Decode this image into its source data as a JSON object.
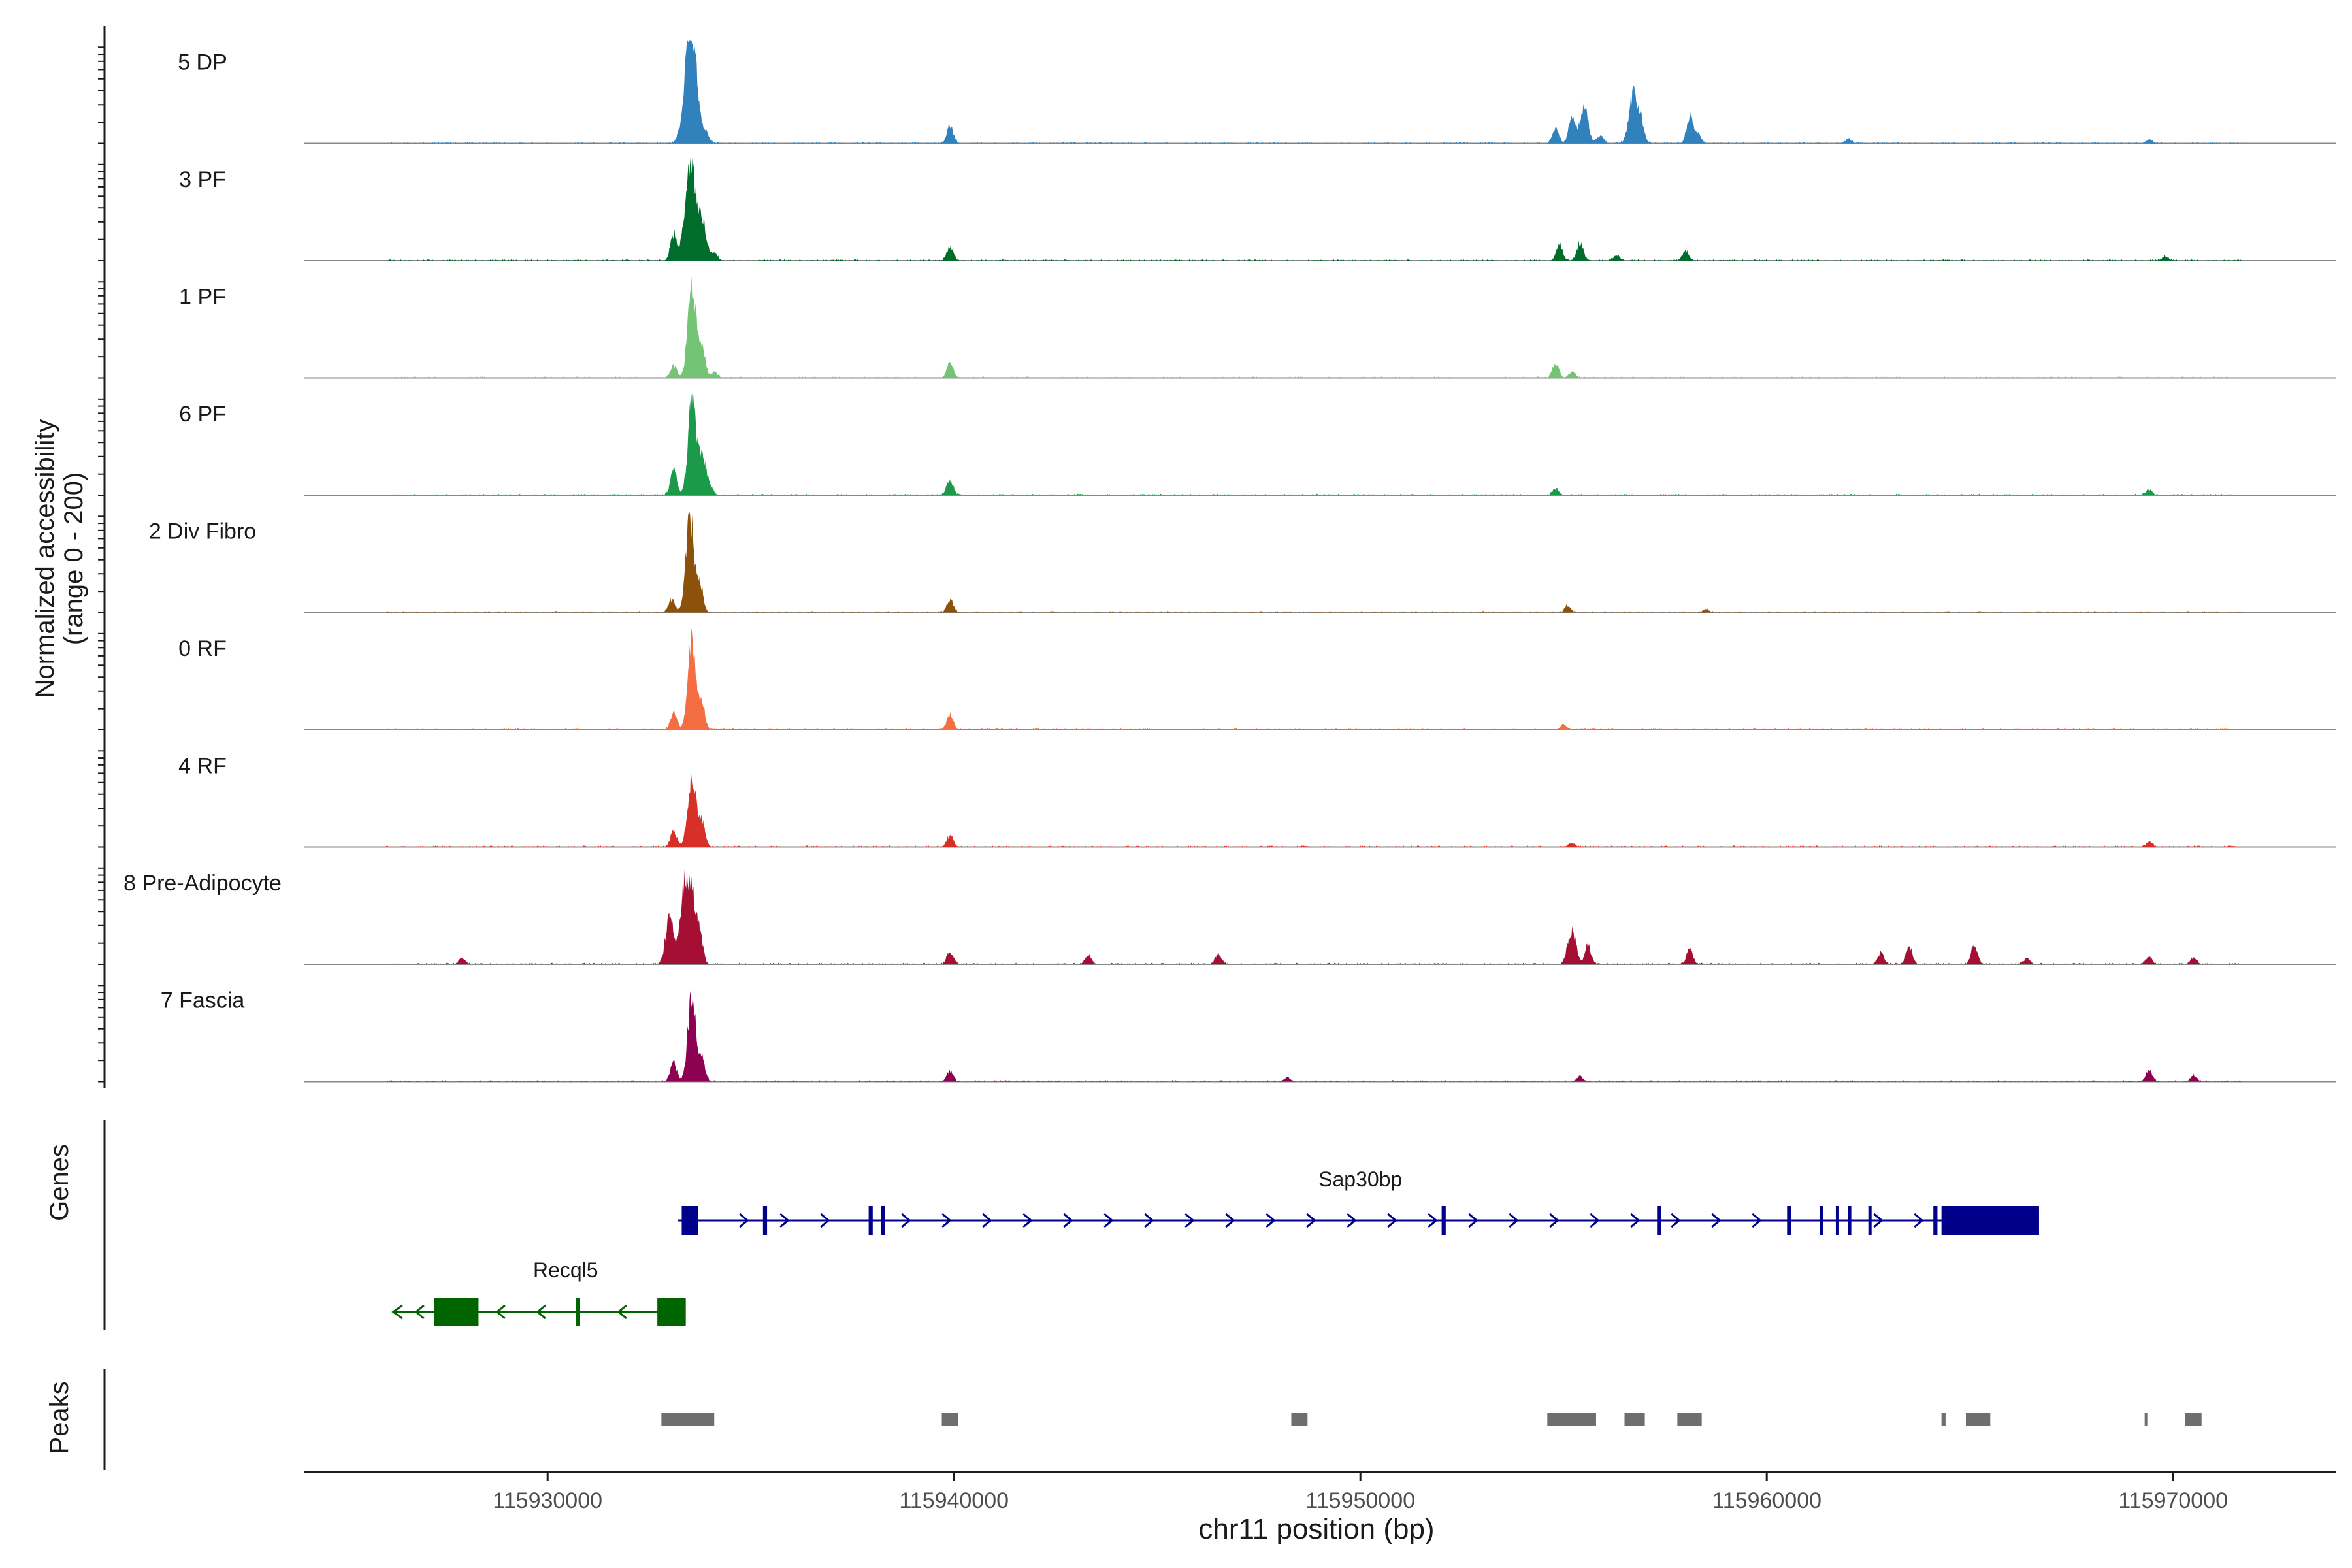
{
  "chart_data": {
    "type": "area",
    "title": "",
    "ylabel": "Normalized accessibility",
    "yrange_label": "(range 0 - 200)",
    "ylim": [
      0,
      200
    ],
    "xlabel": "chr11 position (bp)",
    "xlim": [
      115924000,
      115974000
    ],
    "xticks": [
      115930000,
      115940000,
      115950000,
      115960000,
      115970000
    ],
    "xtick_labels": [
      "115930000",
      "115940000",
      "115950000",
      "115960000",
      "115970000"
    ],
    "track_start": 115926000,
    "track_end": 115971700,
    "tracks": [
      {
        "name": "5 DP",
        "color": "#3181BD",
        "peaks": [
          [
            115933250,
            18
          ],
          [
            115933400,
            48
          ],
          [
            115933500,
            190
          ],
          [
            115933650,
            95
          ],
          [
            115933900,
            20
          ],
          [
            115939900,
            36
          ],
          [
            115954800,
            28
          ],
          [
            115955200,
            55
          ],
          [
            115955500,
            70
          ],
          [
            115955900,
            15
          ],
          [
            115956700,
            95
          ],
          [
            115956900,
            42
          ],
          [
            115958100,
            52
          ],
          [
            115958300,
            18
          ],
          [
            115962000,
            8
          ],
          [
            115969400,
            7
          ]
        ]
      },
      {
        "name": "3 PF",
        "color": "#006D2C",
        "peaks": [
          [
            115933100,
            50
          ],
          [
            115933400,
            70
          ],
          [
            115933550,
            170
          ],
          [
            115933800,
            80
          ],
          [
            115934100,
            15
          ],
          [
            115939900,
            28
          ],
          [
            115954900,
            30
          ],
          [
            115955400,
            35
          ],
          [
            115956300,
            10
          ],
          [
            115958000,
            18
          ],
          [
            115969800,
            8
          ]
        ]
      },
      {
        "name": "1 PF",
        "color": "#74C476",
        "peaks": [
          [
            115933100,
            25
          ],
          [
            115933550,
            180
          ],
          [
            115933800,
            60
          ],
          [
            115934100,
            12
          ],
          [
            115939900,
            30
          ],
          [
            115954800,
            30
          ],
          [
            115955200,
            12
          ]
        ]
      },
      {
        "name": "6 PF",
        "color": "#1B9A4A",
        "peaks": [
          [
            115933100,
            50
          ],
          [
            115933550,
            170
          ],
          [
            115933800,
            70
          ],
          [
            115934000,
            14
          ],
          [
            115939900,
            30
          ],
          [
            115954800,
            12
          ],
          [
            115969400,
            10
          ]
        ]
      },
      {
        "name": "2 Div Fibro",
        "color": "#8C510A",
        "peaks": [
          [
            115933050,
            25
          ],
          [
            115933500,
            190
          ],
          [
            115933750,
            50
          ],
          [
            115939900,
            24
          ],
          [
            115955100,
            12
          ],
          [
            115958500,
            6
          ]
        ]
      },
      {
        "name": "0 RF",
        "color": "#F46D43",
        "peaks": [
          [
            115933100,
            32
          ],
          [
            115933550,
            170
          ],
          [
            115933800,
            48
          ],
          [
            115939900,
            30
          ],
          [
            115955000,
            10
          ]
        ]
      },
      {
        "name": "4 RF",
        "color": "#D73027",
        "peaks": [
          [
            115933100,
            30
          ],
          [
            115933550,
            140
          ],
          [
            115933800,
            45
          ],
          [
            115939900,
            22
          ],
          [
            115955200,
            8
          ],
          [
            115969400,
            10
          ]
        ]
      },
      {
        "name": "8 Pre-Adipocyte",
        "color": "#A50F33",
        "peaks": [
          [
            115927900,
            12
          ],
          [
            115933000,
            90
          ],
          [
            115933350,
            140
          ],
          [
            115933550,
            125
          ],
          [
            115933750,
            50
          ],
          [
            115939900,
            25
          ],
          [
            115943300,
            18
          ],
          [
            115946500,
            20
          ],
          [
            115955200,
            65
          ],
          [
            115955600,
            35
          ],
          [
            115958100,
            28
          ],
          [
            115962800,
            22
          ],
          [
            115963500,
            35
          ],
          [
            115965100,
            38
          ],
          [
            115966400,
            12
          ],
          [
            115969400,
            14
          ],
          [
            115970500,
            12
          ]
        ]
      },
      {
        "name": "7 Fascia",
        "color": "#8E0152",
        "peaks": [
          [
            115933100,
            35
          ],
          [
            115933550,
            160
          ],
          [
            115933800,
            40
          ],
          [
            115939900,
            20
          ],
          [
            115948200,
            8
          ],
          [
            115955400,
            10
          ],
          [
            115969400,
            22
          ],
          [
            115970500,
            12
          ]
        ]
      }
    ],
    "genes_label": "Genes",
    "genes": [
      {
        "name": "Sap30bp",
        "strand": "+",
        "color": "#00008B",
        "start": 115933200,
        "end": 115966700,
        "blocks": [
          [
            115933300,
            115933700
          ],
          [
            115935300,
            115935400
          ],
          [
            115937900,
            115938000
          ],
          [
            115938200,
            115938300
          ],
          [
            115952000,
            115952100
          ],
          [
            115957300,
            115957400
          ],
          [
            115960500,
            115960600
          ],
          [
            115961300,
            115961350
          ],
          [
            115961700,
            115961750
          ],
          [
            115962000,
            115962050
          ],
          [
            115962500,
            115962550
          ],
          [
            115964100,
            115964200
          ],
          [
            115964300,
            115966700
          ]
        ]
      },
      {
        "name": "Recql5",
        "strand": "-",
        "color": "#006400",
        "start": 115926200,
        "end": 115933400,
        "blocks": [
          [
            115927200,
            115928300
          ],
          [
            115930700,
            115930800
          ],
          [
            115932700,
            115933400
          ]
        ]
      }
    ],
    "peaks_label": "Peaks",
    "peak_regions": [
      [
        115932800,
        115934100
      ],
      [
        115939700,
        115940100
      ],
      [
        115948300,
        115948700
      ],
      [
        115954600,
        115955800
      ],
      [
        115956500,
        115957000
      ],
      [
        115957800,
        115958400
      ],
      [
        115964300,
        115964400
      ],
      [
        115964900,
        115965500
      ],
      [
        115969300,
        115969350
      ],
      [
        115970300,
        115970700
      ]
    ]
  }
}
